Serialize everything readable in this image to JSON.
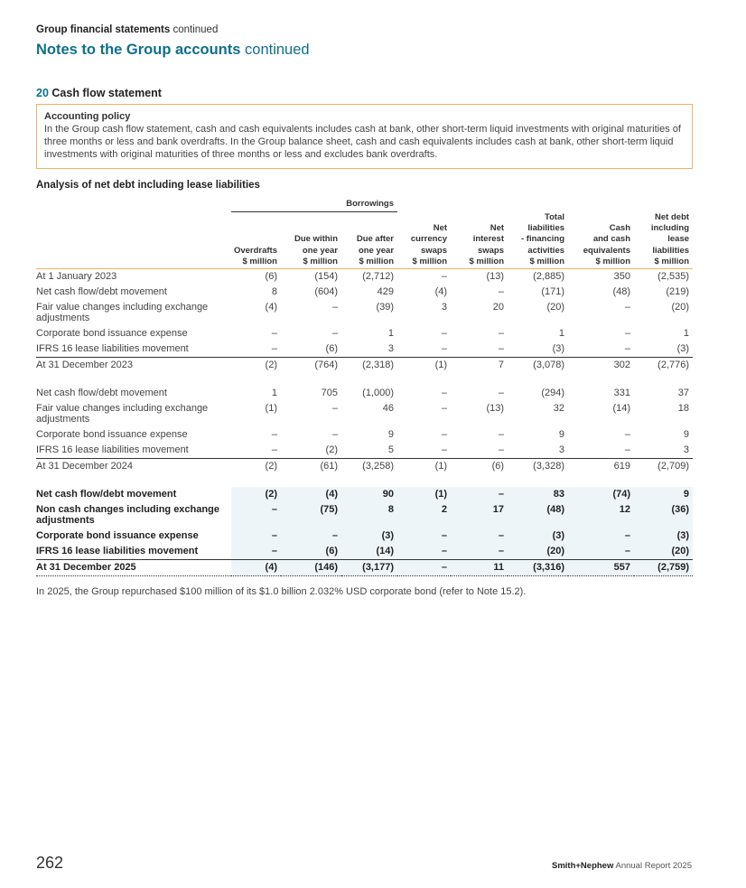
{
  "header": {
    "section": "Group financial statements",
    "section_suffix": "continued",
    "title": "Notes to the Group accounts",
    "title_suffix": "continued"
  },
  "note": {
    "number": "20",
    "title": "Cash flow statement"
  },
  "policy": {
    "title": "Accounting policy",
    "text": "In the Group cash flow statement, cash and cash equivalents includes cash at bank, other short-term liquid investments with original maturities of three months or less and bank overdrafts. In the Group balance sheet, cash and cash equivalents includes cash at bank, other short-term liquid investments with original maturities of three months or less and excludes bank overdrafts."
  },
  "table": {
    "title": "Analysis of net debt including lease liabilities",
    "group_header": "Borrowings",
    "columns": [
      "Overdrafts\n$ million",
      "Due within\none year\n$ million",
      "Due after\none year\n$ million",
      "Net\ncurrency\nswaps\n$ million",
      "Net\ninterest\nswaps\n$ million",
      "Total\nliabilities\n- financing\nactivities\n$ million",
      "Cash\nand cash\nequivalents\n$ million",
      "Net debt\nincluding\nlease\nliabilities\n$ million"
    ],
    "sections": [
      {
        "rows": [
          [
            "At 1 January 2023",
            "(6)",
            "(154)",
            "(2,712)",
            "–",
            "(13)",
            "(2,885)",
            "350",
            "(2,535)"
          ],
          [
            "Net cash flow/debt movement",
            "8",
            "(604)",
            "429",
            "(4)",
            "–",
            "(171)",
            "(48)",
            "(219)"
          ],
          [
            "Fair value changes including exchange adjustments",
            "(4)",
            "–",
            "(39)",
            "3",
            "20",
            "(20)",
            "–",
            "(20)"
          ],
          [
            "Corporate bond issuance expense",
            "–",
            "–",
            "1",
            "–",
            "–",
            "1",
            "–",
            "1"
          ],
          [
            "IFRS 16 lease liabilities movement",
            "–",
            "(6)",
            "3",
            "–",
            "–",
            "(3)",
            "–",
            "(3)"
          ],
          [
            "At 31 December 2023",
            "(2)",
            "(764)",
            "(2,318)",
            "(1)",
            "7",
            "(3,078)",
            "302",
            "(2,776)"
          ]
        ]
      },
      {
        "rows": [
          [
            "Net cash flow/debt movement",
            "1",
            "705",
            "(1,000)",
            "–",
            "–",
            "(294)",
            "331",
            "37"
          ],
          [
            "Fair value changes including exchange adjustments",
            "(1)",
            "–",
            "46",
            "–",
            "(13)",
            "32",
            "(14)",
            "18"
          ],
          [
            "Corporate bond issuance expense",
            "–",
            "–",
            "9",
            "–",
            "–",
            "9",
            "–",
            "9"
          ],
          [
            "IFRS 16 lease liabilities movement",
            "–",
            "(2)",
            "5",
            "–",
            "–",
            "3",
            "–",
            "3"
          ],
          [
            "At 31 December 2024",
            "(2)",
            "(61)",
            "(3,258)",
            "(1)",
            "(6)",
            "(3,328)",
            "619",
            "(2,709)"
          ]
        ]
      },
      {
        "rows": [
          [
            "Net cash flow/debt movement",
            "(2)",
            "(4)",
            "90",
            "(1)",
            "–",
            "83",
            "(74)",
            "9"
          ],
          [
            "Non cash changes including exchange adjustments",
            "–",
            "(75)",
            "8",
            "2",
            "17",
            "(48)",
            "12",
            "(36)"
          ],
          [
            "Corporate bond issuance expense",
            "–",
            "–",
            "(3)",
            "–",
            "–",
            "(3)",
            "–",
            "(3)"
          ],
          [
            "IFRS 16 lease liabilities movement",
            "–",
            "(6)",
            "(14)",
            "–",
            "–",
            "(20)",
            "–",
            "(20)"
          ],
          [
            "At 31 December 2025",
            "(4)",
            "(146)",
            "(3,177)",
            "–",
            "11",
            "(3,316)",
            "557",
            "(2,759)"
          ]
        ]
      }
    ]
  },
  "footnote": "In 2025, the Group repurchased $100 million of its $1.0 billion 2.032% USD corporate bond (refer to Note 15.2).",
  "footer": {
    "page_number": "262",
    "brand": "Smith+Nephew",
    "report": "Annual Report 2025"
  }
}
